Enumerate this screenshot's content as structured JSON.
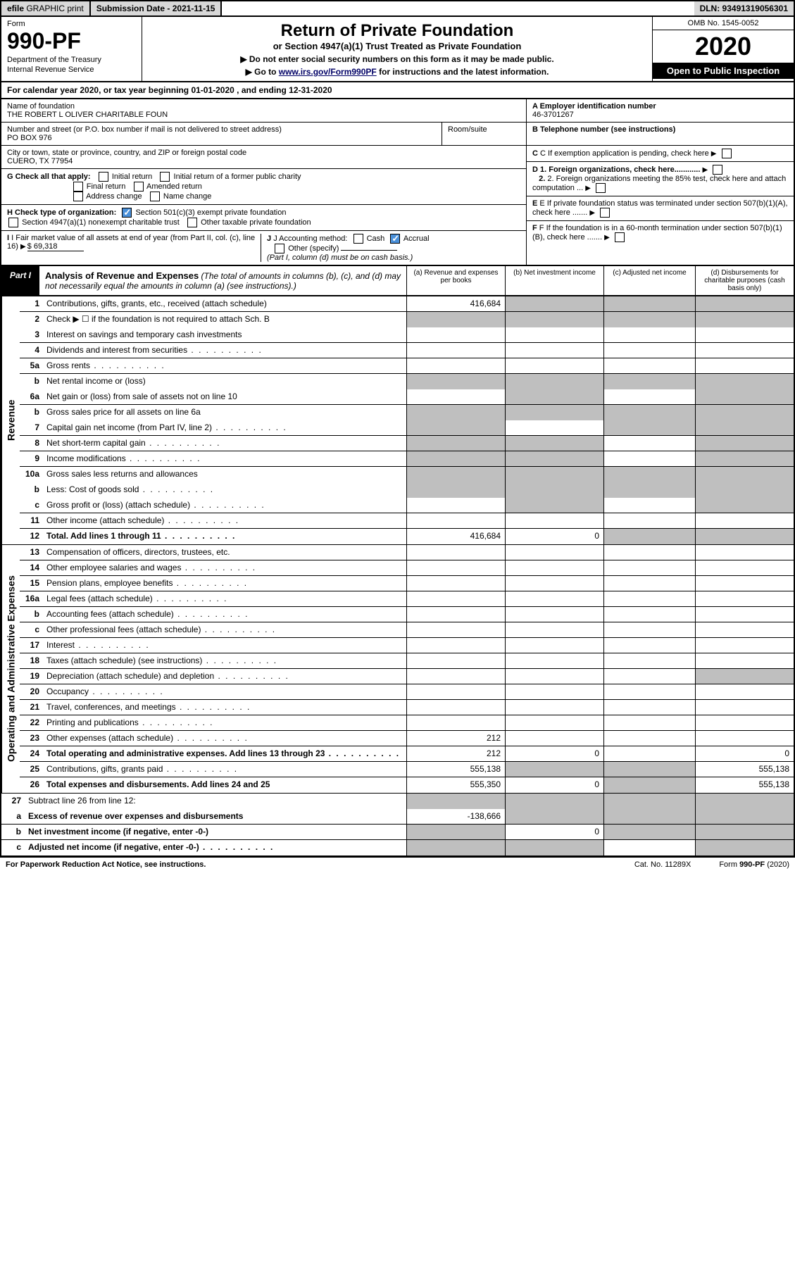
{
  "topbar": {
    "efile_prefix": "efile",
    "efile_rest": " GRAPHIC print",
    "submission": "Submission Date - 2021-11-15",
    "dln": "DLN: 93491319056301"
  },
  "header": {
    "form_label": "Form",
    "form_number": "990-PF",
    "dept1": "Department of the Treasury",
    "dept2": "Internal Revenue Service",
    "title": "Return of Private Foundation",
    "subtitle": "or Section 4947(a)(1) Trust Treated as Private Foundation",
    "note1": "▶ Do not enter social security numbers on this form as it may be made public.",
    "note2_pre": "▶ Go to ",
    "note2_link": "www.irs.gov/Form990PF",
    "note2_post": " for instructions and the latest information.",
    "omb": "OMB No. 1545-0052",
    "year": "2020",
    "open": "Open to Public Inspection"
  },
  "calyear": "For calendar year 2020, or tax year beginning 01-01-2020          , and ending 12-31-2020",
  "entity": {
    "name_label": "Name of foundation",
    "name": "THE ROBERT L OLIVER CHARITABLE FOUN",
    "addr_label": "Number and street (or P.O. box number if mail is not delivered to street address)",
    "addr": "PO BOX 976",
    "room_label": "Room/suite",
    "city_label": "City or town, state or province, country, and ZIP or foreign postal code",
    "city": "CUERO, TX  77954",
    "ein_label": "A Employer identification number",
    "ein": "46-3701267",
    "tel_label": "B Telephone number (see instructions)",
    "c_label": "C If exemption application is pending, check here",
    "d1": "D 1. Foreign organizations, check here............",
    "d2": "2. Foreign organizations meeting the 85% test, check here and attach computation ...",
    "e_label": "E  If private foundation status was terminated under section 507(b)(1)(A), check here .......",
    "f_label": "F  If the foundation is in a 60-month termination under section 507(b)(1)(B), check here .......",
    "g_label": "G Check all that apply:",
    "g_opts": [
      "Initial return",
      "Initial return of a former public charity",
      "Final return",
      "Amended return",
      "Address change",
      "Name change"
    ],
    "h_label": "H Check type of organization:",
    "h_opt1": "Section 501(c)(3) exempt private foundation",
    "h_opt2": "Section 4947(a)(1) nonexempt charitable trust",
    "h_opt3": "Other taxable private foundation",
    "i_label": "I Fair market value of all assets at end of year (from Part II, col. (c), line 16)",
    "i_val": "$  69,318",
    "j_label": "J Accounting method:",
    "j_cash": "Cash",
    "j_accrual": "Accrual",
    "j_other": "Other (specify)",
    "j_note": "(Part I, column (d) must be on cash basis.)"
  },
  "part1": {
    "tag": "Part I",
    "title": "Analysis of Revenue and Expenses",
    "title_note": " (The total of amounts in columns (b), (c), and (d) may not necessarily equal the amounts in column (a) (see instructions).)",
    "col_a": "(a)   Revenue and expenses per books",
    "col_b": "(b)   Net investment income",
    "col_c": "(c)   Adjusted net income",
    "col_d": "(d)   Disbursements for charitable purposes (cash basis only)"
  },
  "side_rev": "Revenue",
  "side_op": "Operating and Administrative Expenses",
  "rows": {
    "r1": {
      "n": "1",
      "d": "Contributions, gifts, grants, etc., received (attach schedule)",
      "a": "416,684"
    },
    "r2": {
      "n": "2",
      "d": "Check ▶ ☐ if the foundation is not required to attach Sch. B"
    },
    "r3": {
      "n": "3",
      "d": "Interest on savings and temporary cash investments"
    },
    "r4": {
      "n": "4",
      "d": "Dividends and interest from securities"
    },
    "r5a": {
      "n": "5a",
      "d": "Gross rents"
    },
    "r5b": {
      "n": "b",
      "d": "Net rental income or (loss)"
    },
    "r6a": {
      "n": "6a",
      "d": "Net gain or (loss) from sale of assets not on line 10"
    },
    "r6b": {
      "n": "b",
      "d": "Gross sales price for all assets on line 6a"
    },
    "r7": {
      "n": "7",
      "d": "Capital gain net income (from Part IV, line 2)"
    },
    "r8": {
      "n": "8",
      "d": "Net short-term capital gain"
    },
    "r9": {
      "n": "9",
      "d": "Income modifications"
    },
    "r10a": {
      "n": "10a",
      "d": "Gross sales less returns and allowances"
    },
    "r10b": {
      "n": "b",
      "d": "Less: Cost of goods sold"
    },
    "r10c": {
      "n": "c",
      "d": "Gross profit or (loss) (attach schedule)"
    },
    "r11": {
      "n": "11",
      "d": "Other income (attach schedule)"
    },
    "r12": {
      "n": "12",
      "d": "Total. Add lines 1 through 11",
      "a": "416,684",
      "b": "0"
    },
    "r13": {
      "n": "13",
      "d": "Compensation of officers, directors, trustees, etc."
    },
    "r14": {
      "n": "14",
      "d": "Other employee salaries and wages"
    },
    "r15": {
      "n": "15",
      "d": "Pension plans, employee benefits"
    },
    "r16a": {
      "n": "16a",
      "d": "Legal fees (attach schedule)"
    },
    "r16b": {
      "n": "b",
      "d": "Accounting fees (attach schedule)"
    },
    "r16c": {
      "n": "c",
      "d": "Other professional fees (attach schedule)"
    },
    "r17": {
      "n": "17",
      "d": "Interest"
    },
    "r18": {
      "n": "18",
      "d": "Taxes (attach schedule) (see instructions)"
    },
    "r19": {
      "n": "19",
      "d": "Depreciation (attach schedule) and depletion"
    },
    "r20": {
      "n": "20",
      "d": "Occupancy"
    },
    "r21": {
      "n": "21",
      "d": "Travel, conferences, and meetings"
    },
    "r22": {
      "n": "22",
      "d": "Printing and publications"
    },
    "r23": {
      "n": "23",
      "d": "Other expenses (attach schedule)",
      "a": "212"
    },
    "r24": {
      "n": "24",
      "d": "Total operating and administrative expenses. Add lines 13 through 23",
      "a": "212",
      "b": "0",
      "dd": "0"
    },
    "r25": {
      "n": "25",
      "d": "Contributions, gifts, grants paid",
      "a": "555,138",
      "dd": "555,138"
    },
    "r26": {
      "n": "26",
      "d": "Total expenses and disbursements. Add lines 24 and 25",
      "a": "555,350",
      "b": "0",
      "dd": "555,138"
    },
    "r27": {
      "n": "27",
      "d": "Subtract line 26 from line 12:"
    },
    "r27a": {
      "n": "a",
      "d": "Excess of revenue over expenses and disbursements",
      "a": "-138,666"
    },
    "r27b": {
      "n": "b",
      "d": "Net investment income (if negative, enter -0-)",
      "b": "0"
    },
    "r27c": {
      "n": "c",
      "d": "Adjusted net income (if negative, enter -0-)"
    }
  },
  "footer": {
    "left": "For Paperwork Reduction Act Notice, see instructions.",
    "mid": "Cat. No. 11289X",
    "right": "Form 990-PF (2020)"
  }
}
